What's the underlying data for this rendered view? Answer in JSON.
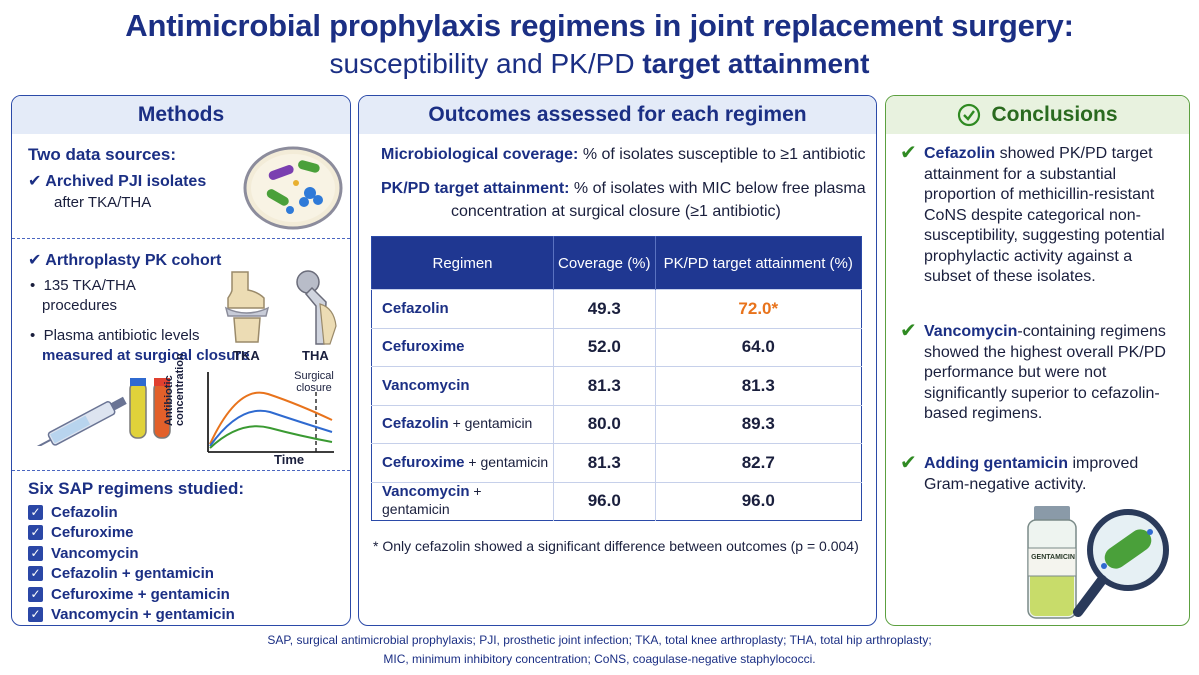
{
  "title": "Antimicrobial prophylaxis regimens in joint replacement surgery:",
  "subtitle": {
    "prefix": "susceptibility and PK/PD",
    "bold": "target attainment"
  },
  "methods": {
    "heading": "Methods",
    "two_sources": "Two data sources:",
    "archived_title": "Archived PJI isolates",
    "archived_sub": "after TKA/THA",
    "cohort_title": "Arthroplasty PK cohort",
    "bullet1_line1": "135 TKA/THA",
    "bullet1_line2": "procedures",
    "bullet2_line1": "Plasma antibiotic levels",
    "bullet2_line2": "measured at surgical closure",
    "tka_label": "TKA",
    "tha_label": "THA",
    "graph_ylabel": "Antibiotic concentration",
    "graph_xlabel": "Time",
    "graph_marker_line1": "Surgical",
    "graph_marker_line2": "closure",
    "sap_heading": "Six SAP regimens studied:",
    "sap_items": [
      "Cefazolin",
      "Cefuroxime",
      "Vancomycin",
      "Cefazolin + gentamicin",
      "Cefuroxime + gentamicin",
      "Vancomycin + gentamicin"
    ]
  },
  "outcomes": {
    "heading": "Outcomes assessed for each regimen",
    "micro_label": "Microbiological coverage:",
    "micro_text": "% of isolates susceptible to ≥1 antibiotic",
    "pkpd_label": "PK/PD target attainment:",
    "pkpd_text1": "% of isolates with MIC below free plasma",
    "pkpd_text2": "concentration at surgical closure (≥1 antibiotic)",
    "footnote": "* Only cefazolin showed a significant difference between outcomes (p = 0.004)"
  },
  "chart_data": {
    "type": "table",
    "columns": [
      "Regimen",
      "Coverage (%)",
      "PK/PD target attainment (%)"
    ],
    "rows": [
      {
        "drug": "Cefazolin",
        "addon": "",
        "coverage": "49.3",
        "pkpd": "72.0*"
      },
      {
        "drug": "Cefuroxime",
        "addon": "",
        "coverage": "52.0",
        "pkpd": "64.0"
      },
      {
        "drug": "Vancomycin",
        "addon": "",
        "coverage": "81.3",
        "pkpd": "81.3"
      },
      {
        "drug": "Cefazolin",
        "addon": " + gentamicin",
        "coverage": "80.0",
        "pkpd": "89.3"
      },
      {
        "drug": "Cefuroxime",
        "addon": " + gentamicin",
        "coverage": "81.3",
        "pkpd": "82.7"
      },
      {
        "drug": "Vancomycin",
        "addon": " + gentamicin",
        "coverage": "96.0",
        "pkpd": "96.0"
      }
    ],
    "highlight_color": "#e8731c"
  },
  "conclusions": {
    "heading": "Conclusions",
    "c1_bold": "Cefazolin",
    "c1_text": " showed PK/PD target attainment for a substantial proportion of methicillin-resistant CoNS despite categorical non-susceptibility, suggesting potential prophylactic activity against a subset of these isolates.",
    "c2_bold": "Vancomycin",
    "c2_text": "-containing regimens showed the highest overall PK/PD performance but were not significantly superior to cefazolin-based regimens.",
    "c3_bold": "Adding gentamicin",
    "c3_text": " improved Gram-negative activity.",
    "vial_label": "GENTAMICIN"
  },
  "footer": {
    "line1": "SAP, surgical antimicrobial prophylaxis; PJI, prosthetic joint infection; TKA, total knee arthroplasty; THA, total hip arthroplasty;",
    "line2": "MIC, minimum inhibitory concentration; CoNS, coagulase-negative staphylococci."
  },
  "colors": {
    "navy": "#1b2f84",
    "green": "#2f8a22",
    "orange": "#e8731c",
    "blue_line": "#2b4aa8"
  }
}
